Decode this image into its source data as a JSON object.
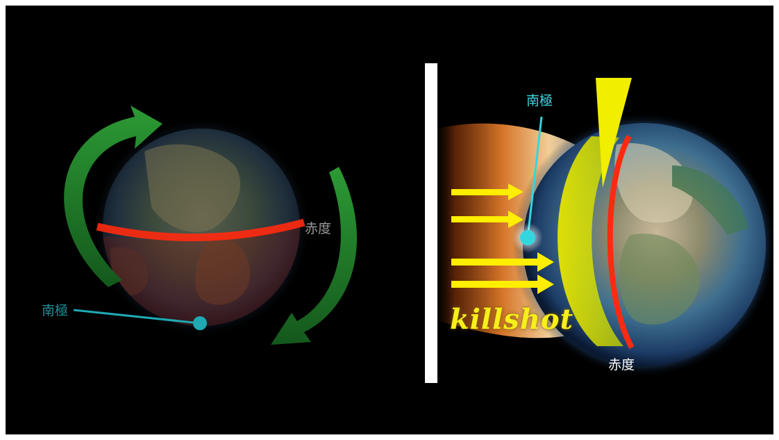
{
  "left_panel": {
    "equator_label": "赤度",
    "south_pole_label": "南極"
  },
  "right_panel": {
    "south_pole_label": "南極",
    "equator_label": "赤度",
    "killshot_label": "killshot"
  },
  "colors": {
    "background": "#000000",
    "rotation_arrow": "#1f8a2a",
    "equator_band": "#ff2a10",
    "pole_marker": "#33d6df",
    "impact_arrows": "#ffee00",
    "wall": "#ffffff"
  }
}
